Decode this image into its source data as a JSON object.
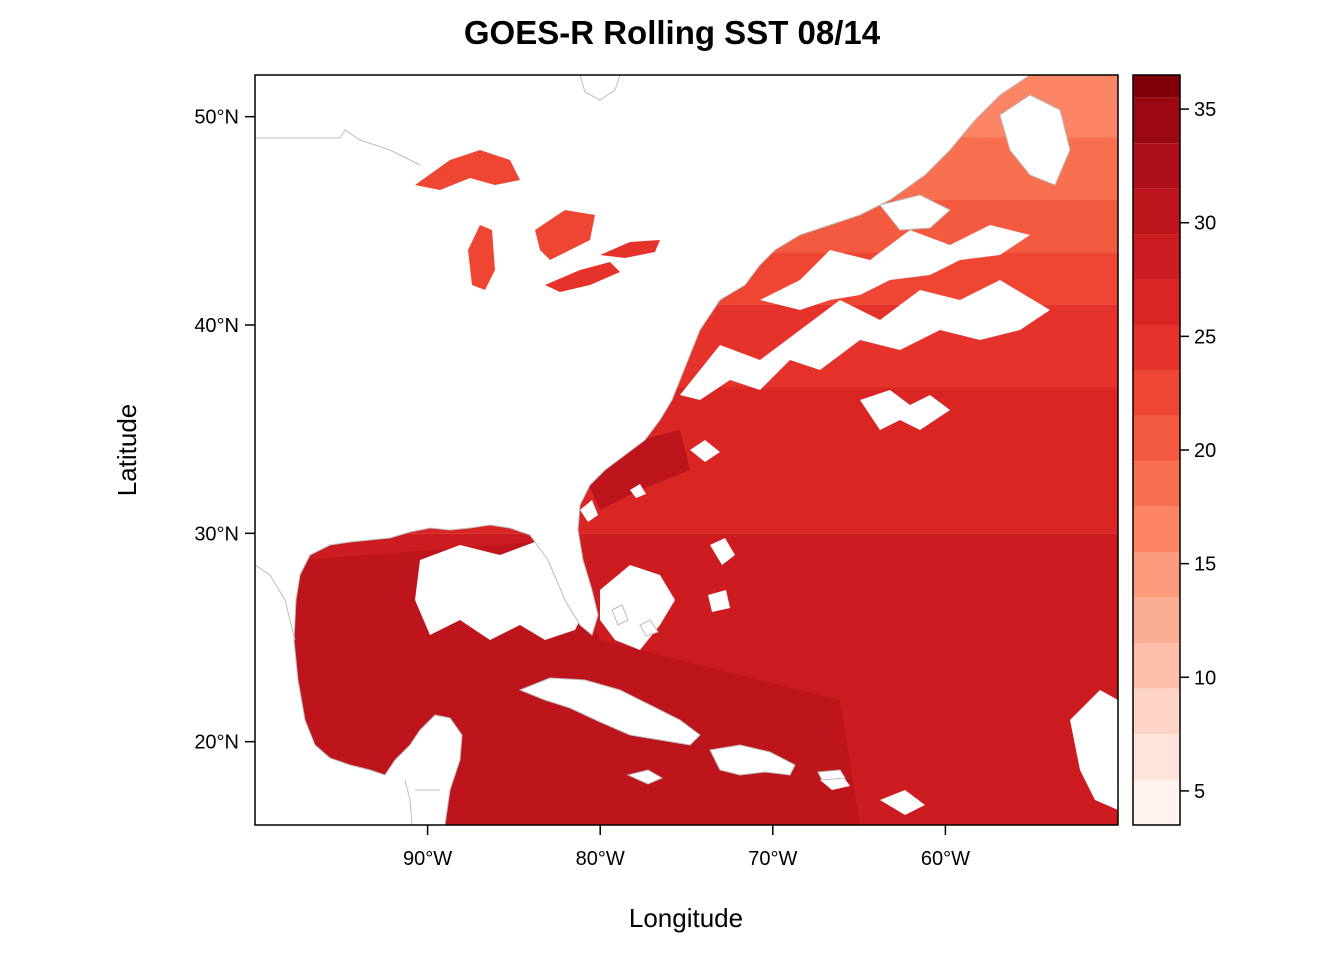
{
  "title": "GOES-R Rolling SST 08/14",
  "map": {
    "type": "raster-map",
    "xlabel": "Longitude",
    "ylabel": "Latitude",
    "xlim": [
      -100,
      -50
    ],
    "ylim": [
      16,
      52
    ],
    "x_ticks": [
      {
        "value": -90,
        "label": "90°W"
      },
      {
        "value": -80,
        "label": "80°W"
      },
      {
        "value": -70,
        "label": "70°W"
      },
      {
        "value": -60,
        "label": "60°W"
      }
    ],
    "y_ticks": [
      {
        "value": 20,
        "label": "20°N"
      },
      {
        "value": 30,
        "label": "30°N"
      },
      {
        "value": 40,
        "label": "40°N"
      },
      {
        "value": 50,
        "label": "50°N"
      }
    ],
    "land_color": "#ffffff",
    "border_color": "#bdbdbd"
  },
  "colorbar": {
    "range": [
      3.5,
      36.5
    ],
    "breaks": [
      3.5,
      5.5,
      7.5,
      9.5,
      11.5,
      13.5,
      15.5,
      17.5,
      19.5,
      21.5,
      23.5,
      25.5,
      27.5,
      29.5,
      31.5,
      33.5,
      35.5,
      36.5
    ],
    "colors": [
      "#fff2ef",
      "#ffe4dc",
      "#fdd4c5",
      "#fcc0aa",
      "#fcae94",
      "#fc9a7c",
      "#fb8565",
      "#f8704f",
      "#f45a3f",
      "#ef4533",
      "#e5332b",
      "#d92624",
      "#cc1c20",
      "#be141c",
      "#ad0e17",
      "#9a0912",
      "#7f000b"
    ],
    "ticks": [
      {
        "value": 5,
        "label": "5"
      },
      {
        "value": 10,
        "label": "10"
      },
      {
        "value": 15,
        "label": "15"
      },
      {
        "value": 20,
        "label": "20"
      },
      {
        "value": 25,
        "label": "25"
      },
      {
        "value": 30,
        "label": "30"
      },
      {
        "value": 35,
        "label": "35"
      }
    ]
  }
}
